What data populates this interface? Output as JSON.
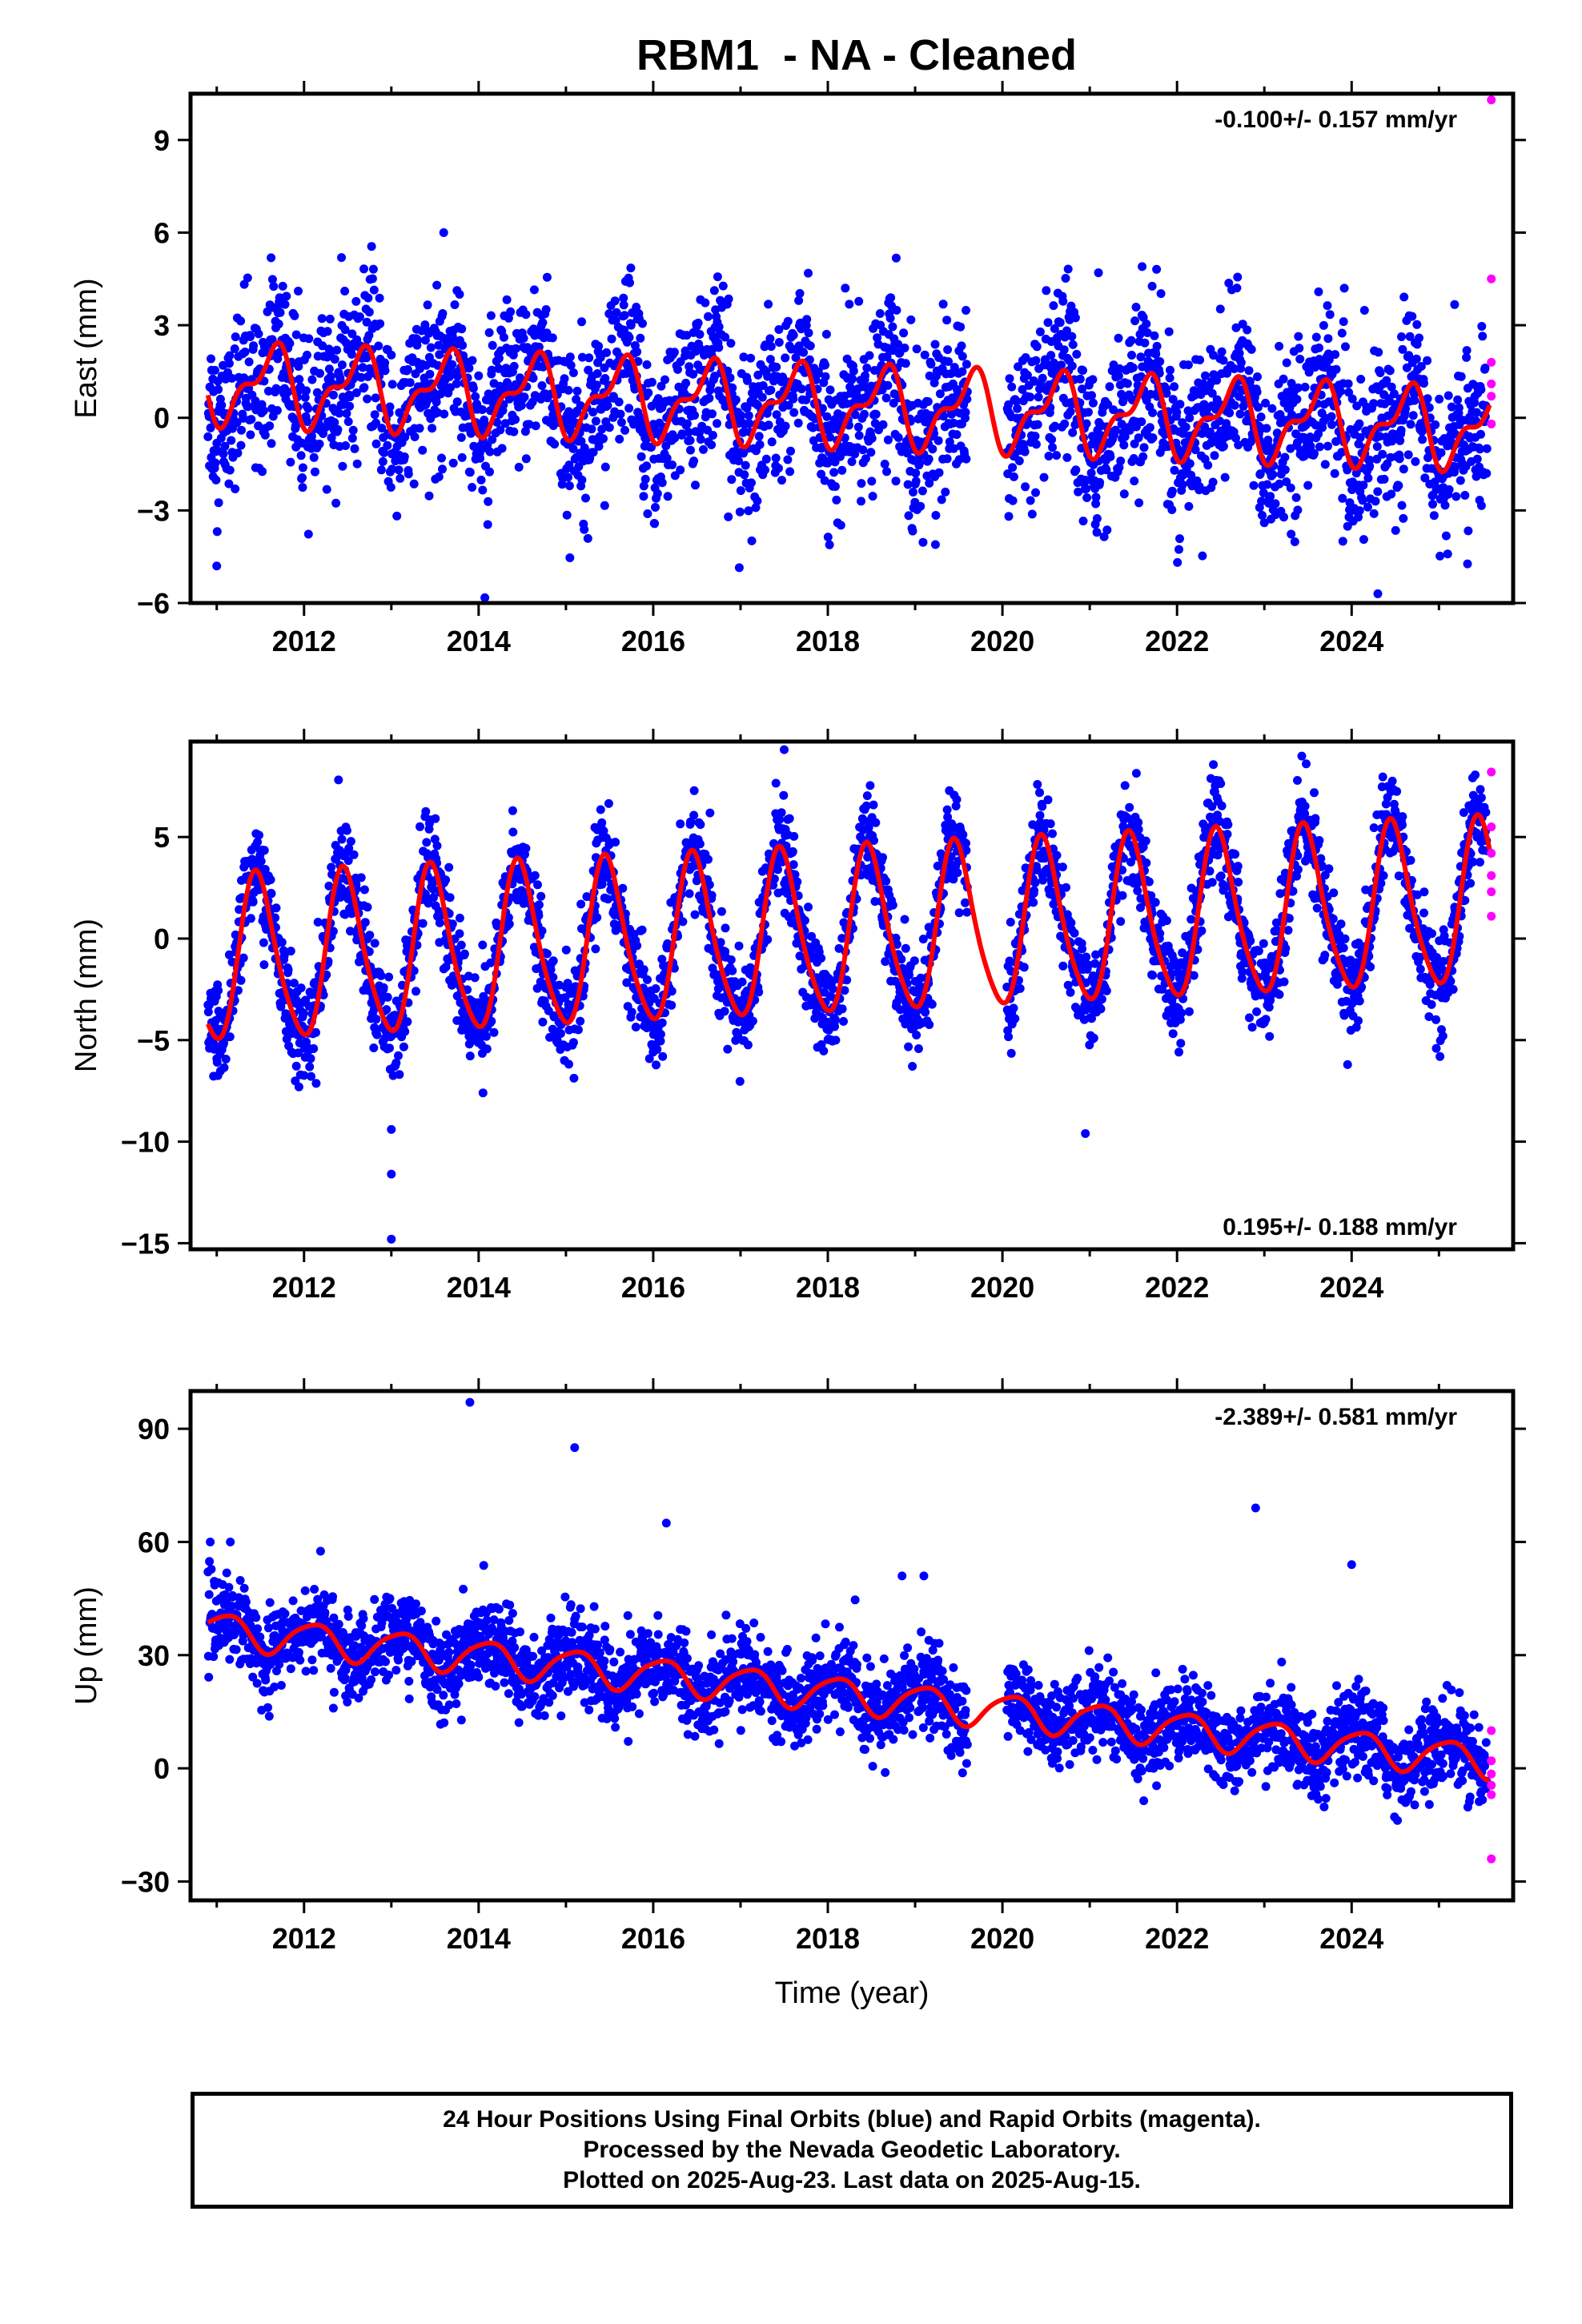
{
  "title": "RBM1  - NA - Cleaned",
  "footer": {
    "line1": "24 Hour Positions Using Final Orbits (blue) and Rapid Orbits (magenta).",
    "line2": "Processed by the Nevada Geodetic Laboratory.",
    "line3": "Plotted on 2025-Aug-23. Last data on 2025-Aug-15."
  },
  "colors": {
    "final_orbits": "#0000ff",
    "rapid_orbits": "#ff00ff",
    "model_fit": "#ff0000",
    "frame": "#000000"
  },
  "chart_data": [
    {
      "type": "scatter",
      "name": "east",
      "ylabel": "East (mm)",
      "xlabel": "",
      "xlim": [
        2010.7,
        2025.85
      ],
      "ylim": [
        -6,
        10.5
      ],
      "yticks": [
        -6,
        -3,
        0,
        3,
        6,
        9
      ],
      "xticks": [
        2012,
        2014,
        2016,
        2018,
        2020,
        2022,
        2024
      ],
      "rate_label": "-0.100+/- 0.157 mm/yr",
      "rate_position": "top-right",
      "rate_mm_per_yr": -0.1,
      "rate_sigma": 0.157,
      "model": {
        "offset": 0.4,
        "amp1": 1.1,
        "phase1": 0.62,
        "amp2": 0.55,
        "phase2": 0.25
      },
      "scatter_sigma": 1.3,
      "data_gap": [
        2019.6,
        2020.05
      ],
      "rapid_points": [
        10.3,
        4.5,
        1.8,
        1.1,
        0.7,
        -0.2
      ],
      "outliers": [
        [
          2013.6,
          6.0
        ],
        [
          2021.1,
          4.7
        ],
        [
          2021.6,
          4.9
        ],
        [
          2024.3,
          -5.7
        ],
        [
          2011.0,
          -4.8
        ]
      ]
    },
    {
      "type": "scatter",
      "name": "north",
      "ylabel": "North (mm)",
      "xlabel": "",
      "xlim": [
        2010.7,
        2025.85
      ],
      "ylim": [
        -15.3,
        9.7
      ],
      "yticks": [
        -15,
        -10,
        -5,
        0,
        5
      ],
      "xticks": [
        2012,
        2014,
        2016,
        2018,
        2020,
        2022,
        2024
      ],
      "rate_label": "0.195+/- 0.188 mm/yr",
      "rate_position": "bottom-right",
      "rate_mm_per_yr": 0.195,
      "rate_sigma": 0.188,
      "model": {
        "offset": 0.2,
        "amp1": 4.0,
        "phase1": 0.47,
        "amp2": 0.6,
        "phase2": 0.4
      },
      "scatter_sigma": 1.2,
      "data_gap": [
        2019.6,
        2020.05
      ],
      "rapid_points": [
        8.2,
        5.5,
        4.2,
        3.1,
        2.3,
        1.1
      ],
      "outliers": [
        [
          2013.0,
          -14.8
        ],
        [
          2013.0,
          -11.6
        ],
        [
          2013.0,
          -9.4
        ],
        [
          2017.5,
          9.3
        ],
        [
          2020.95,
          -9.6
        ]
      ]
    },
    {
      "type": "scatter",
      "name": "up",
      "ylabel": "Up (mm)",
      "xlabel": "Time (year)",
      "xlim": [
        2010.7,
        2025.85
      ],
      "ylim": [
        -35,
        100
      ],
      "yticks": [
        -30,
        0,
        30,
        60,
        90
      ],
      "xticks": [
        2012,
        2014,
        2016,
        2018,
        2020,
        2022,
        2024
      ],
      "rate_label": "-2.389+/- 0.581 mm/yr",
      "rate_position": "top-right",
      "rate_mm_per_yr": -2.389,
      "rate_sigma": 0.581,
      "model": {
        "offset": 20.0,
        "amp1": 4.5,
        "phase1": 0.1,
        "amp2": 0.8,
        "phase2": 0.3
      },
      "scatter_sigma": 5.5,
      "data_gap": [
        2019.6,
        2020.05
      ],
      "rapid_points": [
        10.0,
        2.0,
        -1.5,
        -4.5,
        -7.0,
        -24.0
      ],
      "outliers": [
        [
          2013.9,
          97
        ],
        [
          2015.1,
          85
        ],
        [
          2016.15,
          65
        ],
        [
          2018.85,
          51
        ],
        [
          2019.1,
          51
        ],
        [
          2022.9,
          69
        ],
        [
          2024.0,
          54
        ],
        [
          2013.3,
          38
        ],
        [
          2015.0,
          36
        ],
        [
          2014.05,
          42
        ]
      ]
    }
  ]
}
